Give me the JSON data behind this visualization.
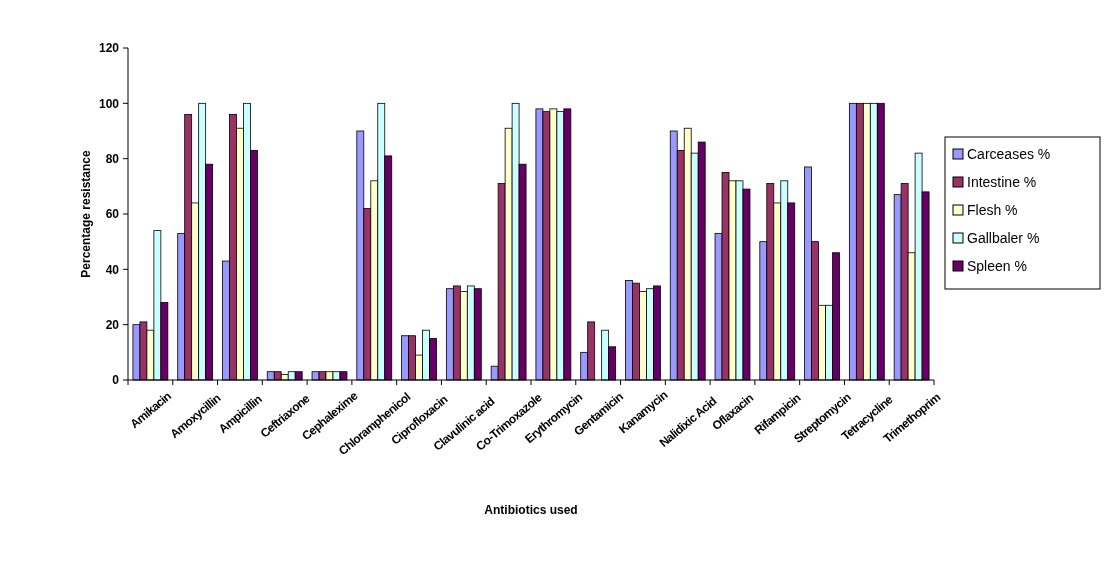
{
  "chart_data": {
    "type": "bar",
    "xlabel": "Antibiotics used",
    "ylabel": "Percentage resistance",
    "categories": [
      "Amikacin",
      "Amoxycillin",
      "Ampicillin",
      "Ceftriaxone",
      "Cephalexime",
      "Chloramphenicol",
      "Ciprofloxacin",
      "Clavulinic acid",
      "Co-Trimoxazole",
      "Erythromycin",
      "Gentamicin",
      "Kanamycin",
      "Nalidixic Acid",
      "Oflaxacin",
      "Rifampicin",
      "Streptomycin",
      "Tetracycline",
      "Trimethoprim"
    ],
    "series": [
      {
        "name": "Carceases %",
        "color": "#9999ff",
        "values": [
          20,
          53,
          43,
          3,
          3,
          90,
          16,
          33,
          5,
          98,
          10,
          36,
          90,
          53,
          50,
          77,
          100,
          67
        ]
      },
      {
        "name": "Intestine %",
        "color": "#993366",
        "values": [
          21,
          96,
          96,
          3,
          3,
          62,
          16,
          34,
          71,
          97,
          21,
          35,
          83,
          75,
          71,
          50,
          100,
          71
        ]
      },
      {
        "name": "Flesh %",
        "color": "#ffffcc",
        "values": [
          18,
          64,
          91,
          2,
          3,
          72,
          9,
          32,
          91,
          98,
          0,
          32,
          91,
          72,
          64,
          27,
          100,
          46
        ]
      },
      {
        "name": "Gallbaler %",
        "color": "#ccffff",
        "values": [
          54,
          100,
          100,
          3,
          3,
          100,
          18,
          34,
          100,
          97,
          18,
          33,
          82,
          72,
          72,
          27,
          100,
          82
        ]
      },
      {
        "name": "Spleen %",
        "color": "#660066",
        "values": [
          28,
          78,
          83,
          3,
          3,
          81,
          15,
          33,
          78,
          98,
          12,
          34,
          86,
          69,
          64,
          46,
          100,
          68
        ]
      }
    ],
    "ylim": [
      0,
      120
    ],
    "yticks": [
      0,
      20,
      40,
      60,
      80,
      100,
      120
    ],
    "legend": "right"
  }
}
